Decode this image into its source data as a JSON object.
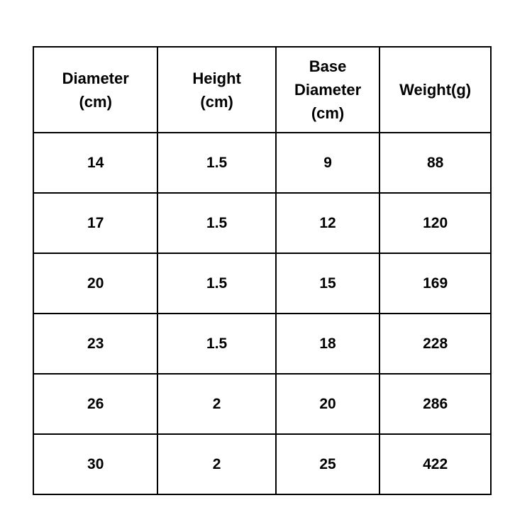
{
  "colors": {
    "background": "#ffffff",
    "border": "#000000",
    "text": "#000000"
  },
  "chart_data": {
    "type": "table",
    "title": "",
    "columns": [
      "Diameter (cm)",
      "Height (cm)",
      "Base Diameter (cm)",
      "Weight(g)"
    ],
    "header_lines": [
      [
        "Diameter",
        "(cm)"
      ],
      [
        "Height",
        "(cm)"
      ],
      [
        "Base",
        "Diameter",
        "(cm)"
      ],
      [
        "Weight(g)"
      ]
    ],
    "rows": [
      [
        "14",
        "1.5",
        "9",
        "88"
      ],
      [
        "17",
        "1.5",
        "12",
        "120"
      ],
      [
        "20",
        "1.5",
        "15",
        "169"
      ],
      [
        "23",
        "1.5",
        "18",
        "228"
      ],
      [
        "26",
        "2",
        "20",
        "286"
      ],
      [
        "30",
        "2",
        "25",
        "422"
      ]
    ]
  }
}
